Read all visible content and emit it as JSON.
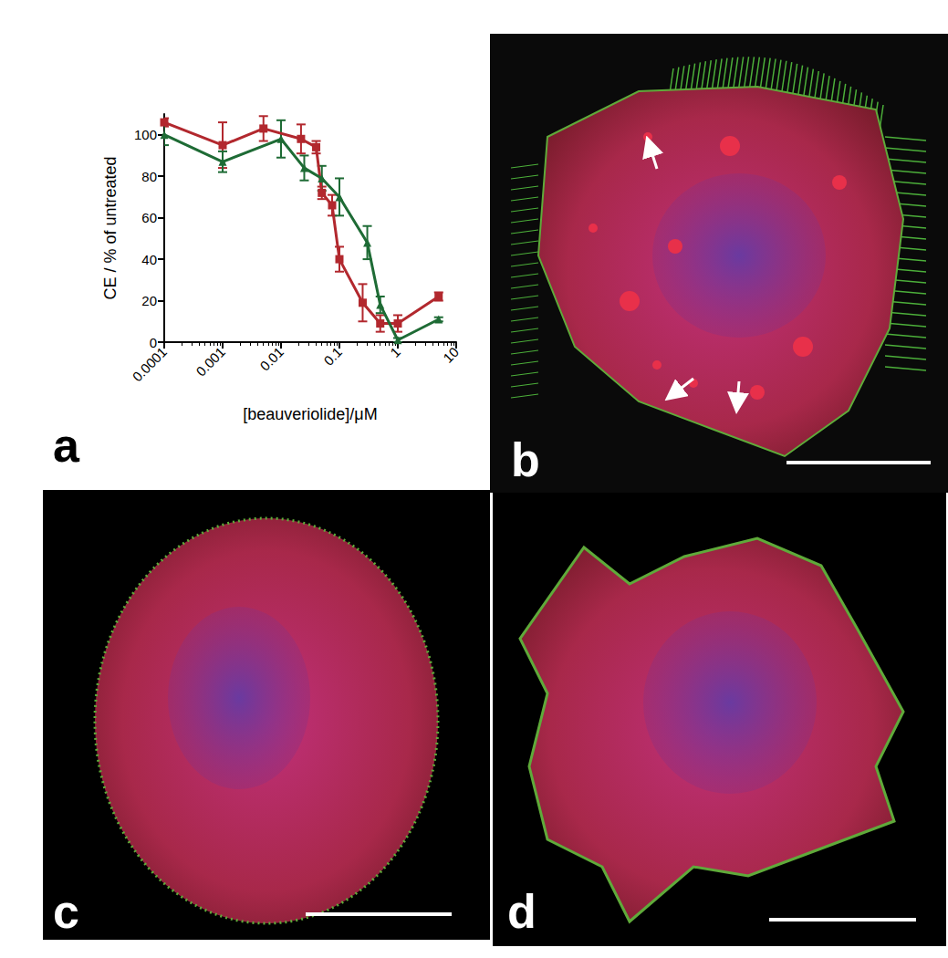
{
  "chart_data": {
    "type": "line",
    "log": "x",
    "grid": false,
    "xlabel": "[beauveriolide]/μM",
    "ylabel": "CE / % of untreated",
    "xlim": [
      0.0001,
      10
    ],
    "xticks": [
      0.0001,
      0.001,
      0.01,
      0.1,
      1,
      10
    ],
    "ylim": [
      0,
      110
    ],
    "yticks": [
      0,
      20,
      40,
      60,
      80,
      100
    ],
    "series": [
      {
        "color": "#b2282e",
        "marker": "square",
        "x": [
          0.0001,
          0.001,
          0.005,
          0.022,
          0.04,
          0.05,
          0.075,
          0.1,
          0.25,
          0.5,
          1,
          5
        ],
        "values": [
          106,
          95,
          103,
          98,
          94,
          72,
          66,
          40,
          19,
          9,
          9,
          22
        ],
        "errors": [
          2,
          11,
          6,
          7,
          3,
          3,
          5,
          6,
          9,
          4,
          4,
          2
        ]
      },
      {
        "color": "#1e6b35",
        "marker": "triangle",
        "x": [
          0.0001,
          0.001,
          0.01,
          0.025,
          0.05,
          0.1,
          0.3,
          0.5,
          1,
          5
        ],
        "values": [
          100,
          87,
          98,
          84,
          79,
          70,
          48,
          18,
          1,
          11
        ],
        "errors": [
          5,
          5,
          9,
          6,
          6,
          9,
          8,
          4,
          1,
          1
        ]
      }
    ]
  },
  "panel_labels": [
    "a",
    "b",
    "c",
    "d"
  ]
}
